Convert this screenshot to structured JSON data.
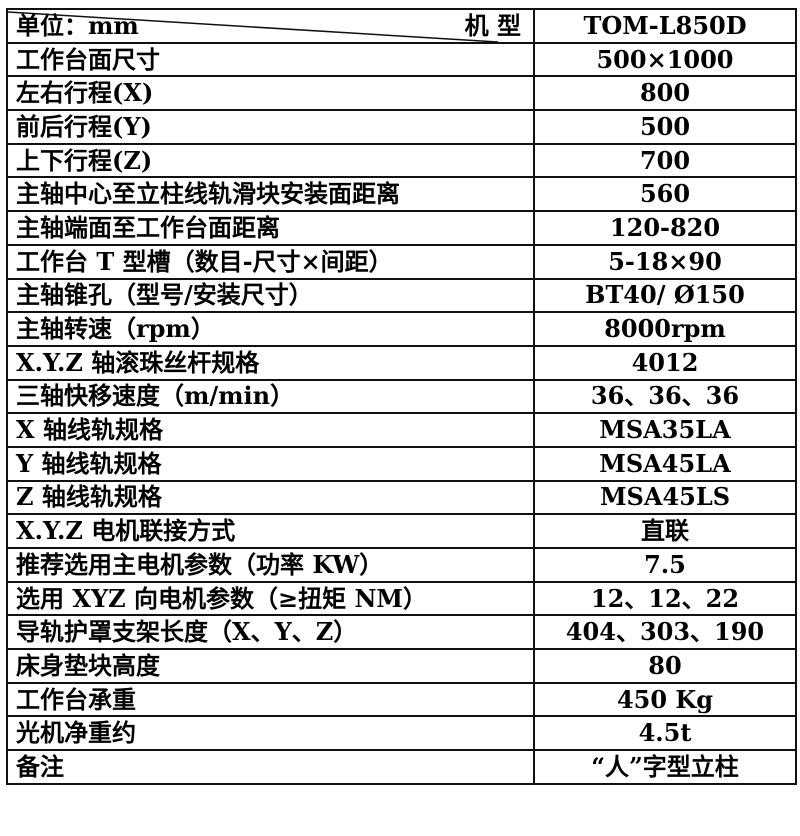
{
  "header": {
    "unit_label": "单位：mm",
    "model_label": "机 型",
    "model_value": "TOM-L850D"
  },
  "rows": [
    {
      "label": "工作台面尺寸",
      "value": "500×1000"
    },
    {
      "label": "左右行程(X)",
      "value": "800"
    },
    {
      "label": "前后行程(Y)",
      "value": "500"
    },
    {
      "label": "上下行程(Z)",
      "value": "700"
    },
    {
      "label": "主轴中心至立柱线轨滑块安装面距离",
      "value": "560"
    },
    {
      "label": "主轴端面至工作台面距离",
      "value": "120-820"
    },
    {
      "label": "工作台 T 型槽（数目-尺寸×间距）",
      "value": "5-18×90"
    },
    {
      "label": "主轴锥孔（型号/安装尺寸）",
      "value": "BT40/ Ø150"
    },
    {
      "label": "主轴转速（rpm）",
      "value": "8000rpm"
    },
    {
      "label": "X.Y.Z 轴滚珠丝杆规格",
      "value": "4012"
    },
    {
      "label": "三轴快移速度（m/min）",
      "value": "36、36、36"
    },
    {
      "label": "X 轴线轨规格",
      "value": "MSA35LA"
    },
    {
      "label": "Y 轴线轨规格",
      "value": "MSA45LA"
    },
    {
      "label": "Z 轴线轨规格",
      "value": "MSA45LS"
    },
    {
      "label": "X.Y.Z 电机联接方式",
      "value": "直联"
    },
    {
      "label": "推荐选用主电机参数（功率 KW）",
      "value": "7.5"
    },
    {
      "label": "选用 XYZ 向电机参数（≥扭矩 NM）",
      "value": "12、12、22"
    },
    {
      "label": "导轨护罩支架长度（X、Y、Z）",
      "value": "404、303、190"
    },
    {
      "label": "床身垫块高度",
      "value": "80"
    },
    {
      "label": "工作台承重",
      "value": "450 Kg"
    },
    {
      "label": "光机净重约",
      "value": "4.5t"
    },
    {
      "label": "备注",
      "value": "“人”字型立柱"
    }
  ]
}
